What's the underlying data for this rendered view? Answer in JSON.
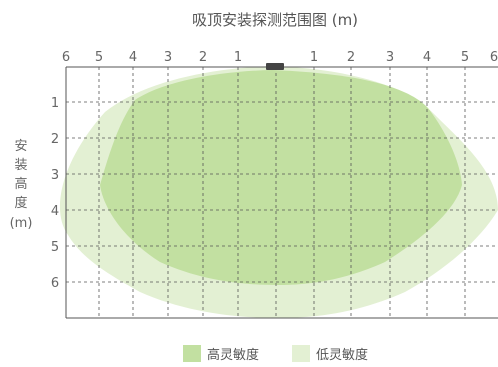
{
  "title": "吸顶安装探测范围图 (m)",
  "x_ticks_left": [
    "6",
    "5",
    "4",
    "3",
    "2",
    "1"
  ],
  "x_ticks_right": [
    "1",
    "2",
    "3",
    "4",
    "5",
    "6"
  ],
  "y_ticks": [
    "1",
    "2",
    "3",
    "4",
    "5",
    "6"
  ],
  "y_axis_label": {
    "chars": [
      "安",
      "装",
      "高",
      "度"
    ],
    "unit": "(m)"
  },
  "legend": [
    {
      "label": "高灵敏度",
      "color": "#c2e0a1"
    },
    {
      "label": "低灵敏度",
      "color": "#e3f0d3"
    }
  ],
  "colors": {
    "high_sensitivity": "#c2e0a1",
    "low_sensitivity": "#e3f0d3",
    "grid": "#555555",
    "sensor": "#444444"
  },
  "icons": {
    "sensor": "ceiling-sensor-icon"
  }
}
